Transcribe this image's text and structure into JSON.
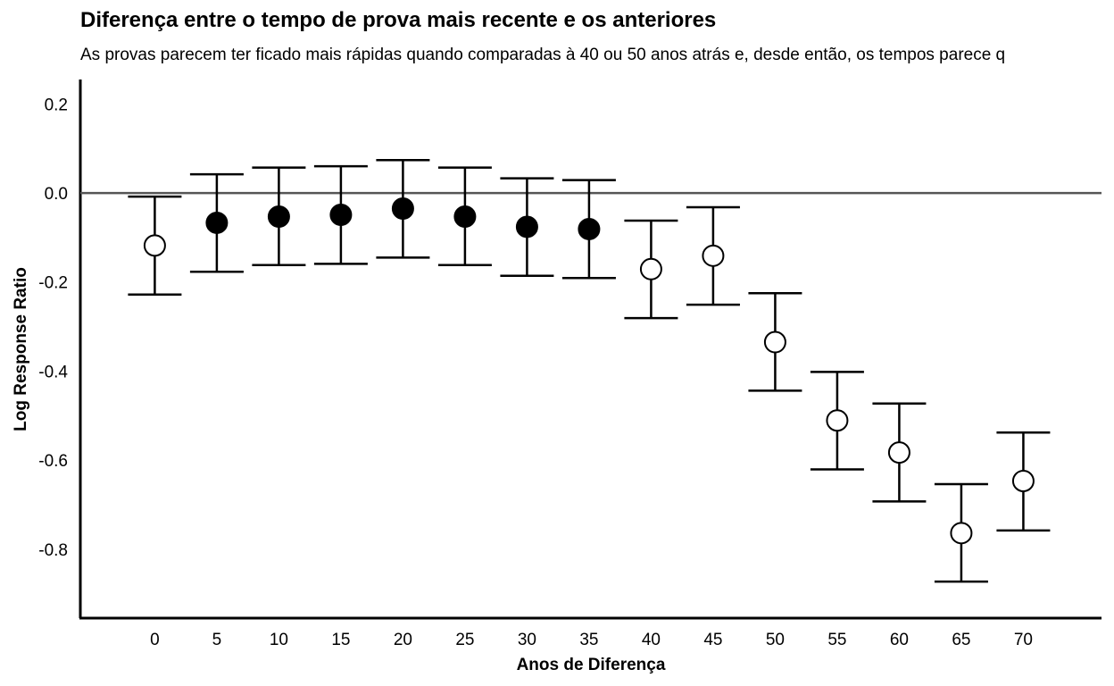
{
  "chart_data": {
    "type": "scatter",
    "subtype": "point-with-error-bars",
    "title": "Diferença entre o tempo de prova mais recente e os anteriores",
    "subtitle": "As provas parecem ter ficado mais rápidas quando comparadas à 40 ou 50 anos atrás e, desde então, os tempos parece q",
    "xlabel": "Anos de Diferença",
    "ylabel": "Log Response Ratio",
    "x_ticks": [
      0,
      5,
      10,
      15,
      20,
      25,
      30,
      35,
      40,
      45,
      50,
      55,
      60,
      65,
      70
    ],
    "y_ticks": [
      0.2,
      0.0,
      -0.2,
      -0.4,
      -0.6,
      -0.8
    ],
    "y_tick_labels": [
      "0.2",
      "0.0",
      "-0.2",
      "-0.4",
      "-0.6",
      "-0.8"
    ],
    "xlim": [
      -6,
      76.3
    ],
    "ylim": [
      -0.955,
      0.255
    ],
    "reference_line": 0.0,
    "grid": false,
    "points": [
      {
        "x": 0,
        "y": -0.118,
        "lower": -0.228,
        "upper": -0.008,
        "filled": false
      },
      {
        "x": 5,
        "y": -0.067,
        "lower": -0.177,
        "upper": 0.042,
        "filled": true
      },
      {
        "x": 10,
        "y": -0.053,
        "lower": -0.162,
        "upper": 0.057,
        "filled": true
      },
      {
        "x": 15,
        "y": -0.049,
        "lower": -0.159,
        "upper": 0.06,
        "filled": true
      },
      {
        "x": 20,
        "y": -0.035,
        "lower": -0.145,
        "upper": 0.074,
        "filled": true
      },
      {
        "x": 25,
        "y": -0.053,
        "lower": -0.162,
        "upper": 0.057,
        "filled": true
      },
      {
        "x": 30,
        "y": -0.076,
        "lower": -0.186,
        "upper": 0.033,
        "filled": true
      },
      {
        "x": 35,
        "y": -0.081,
        "lower": -0.191,
        "upper": 0.029,
        "filled": true
      },
      {
        "x": 40,
        "y": -0.171,
        "lower": -0.281,
        "upper": -0.062,
        "filled": false
      },
      {
        "x": 45,
        "y": -0.141,
        "lower": -0.251,
        "upper": -0.032,
        "filled": false
      },
      {
        "x": 50,
        "y": -0.335,
        "lower": -0.444,
        "upper": -0.225,
        "filled": false
      },
      {
        "x": 55,
        "y": -0.511,
        "lower": -0.621,
        "upper": -0.402,
        "filled": false
      },
      {
        "x": 60,
        "y": -0.583,
        "lower": -0.693,
        "upper": -0.473,
        "filled": false
      },
      {
        "x": 65,
        "y": -0.764,
        "lower": -0.873,
        "upper": -0.654,
        "filled": false
      },
      {
        "x": 70,
        "y": -0.647,
        "lower": -0.758,
        "upper": -0.538,
        "filled": false
      }
    ]
  }
}
